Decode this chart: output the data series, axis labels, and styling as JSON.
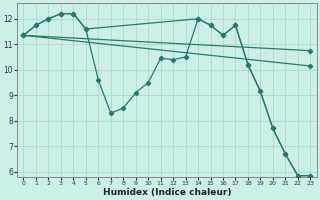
{
  "xlabel": "Humidex (Indice chaleur)",
  "bg_color": "#cceee8",
  "line_color": "#2a7a6a",
  "grid_color": "#aad8d0",
  "xlim": [
    -0.5,
    23.5
  ],
  "ylim": [
    5.8,
    12.6
  ],
  "xticks": [
    0,
    1,
    2,
    3,
    4,
    5,
    6,
    7,
    8,
    9,
    10,
    11,
    12,
    13,
    14,
    15,
    16,
    17,
    18,
    19,
    20,
    21,
    22,
    23
  ],
  "yticks": [
    6,
    7,
    8,
    9,
    10,
    11,
    12
  ],
  "series": [
    {
      "x": [
        0,
        1,
        2,
        3,
        4,
        5,
        6,
        7,
        8,
        9,
        10,
        11,
        12,
        13,
        14,
        15,
        16,
        17,
        18,
        19,
        20,
        21,
        22,
        23
      ],
      "y": [
        11.35,
        11.75,
        12.0,
        12.2,
        12.2,
        11.6,
        9.6,
        8.3,
        8.5,
        9.1,
        9.5,
        10.45,
        10.4,
        10.5,
        12.0,
        11.75,
        11.35,
        11.75,
        10.2,
        9.15,
        7.7,
        6.7,
        5.85,
        5.85
      ]
    },
    {
      "x": [
        0,
        1,
        2,
        3,
        4,
        5,
        14,
        15,
        16,
        17,
        18,
        19,
        20,
        21,
        22,
        23
      ],
      "y": [
        11.35,
        11.75,
        12.0,
        12.2,
        12.2,
        11.6,
        12.0,
        11.75,
        11.35,
        11.75,
        10.2,
        9.15,
        7.7,
        6.7,
        5.85,
        5.85
      ]
    },
    {
      "x": [
        0,
        23
      ],
      "y": [
        11.35,
        10.15
      ]
    },
    {
      "x": [
        0,
        23
      ],
      "y": [
        11.35,
        10.75
      ]
    }
  ]
}
